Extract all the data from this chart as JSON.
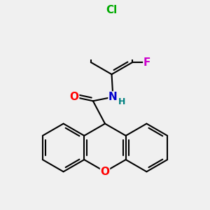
{
  "background_color": "#f0f0f0",
  "bond_color": "#000000",
  "o_color": "#ff0000",
  "n_color": "#0000cc",
  "h_color": "#008080",
  "cl_color": "#00aa00",
  "f_color": "#cc00cc",
  "line_width": 1.5,
  "font_size": 10,
  "fig_size": [
    3.0,
    3.0
  ],
  "dpi": 100,
  "xlim": [
    -2.8,
    2.8
  ],
  "ylim": [
    -2.8,
    2.8
  ]
}
